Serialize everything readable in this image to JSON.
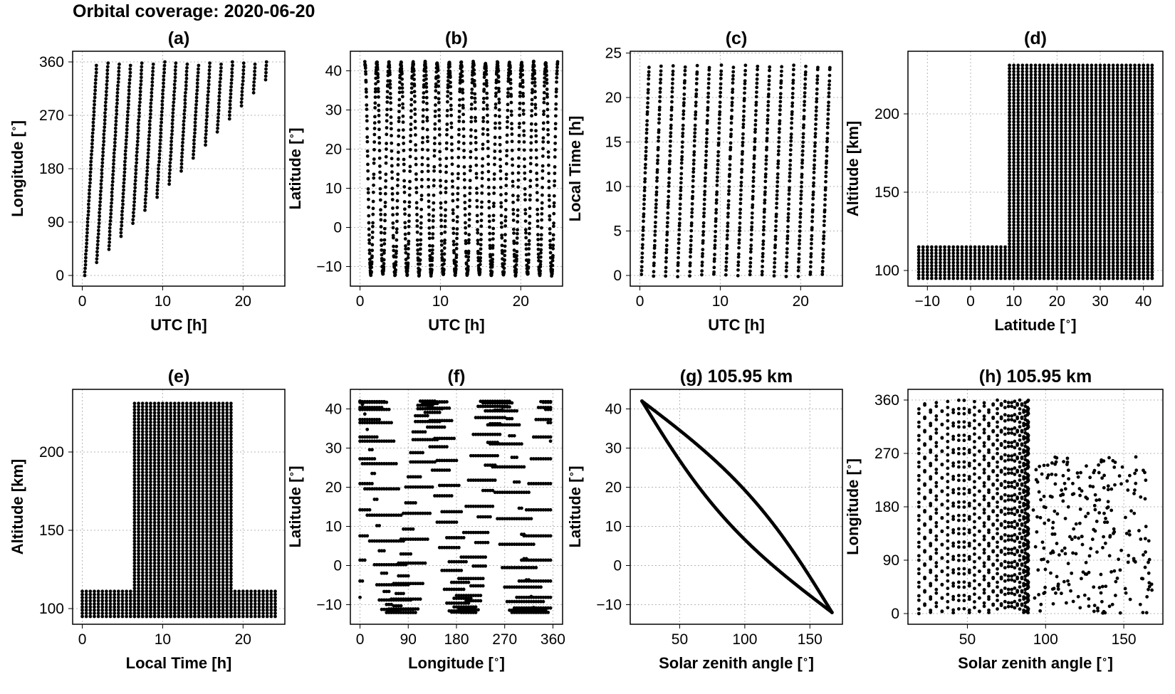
{
  "figure": {
    "title": "Orbital coverage: 2020-06-20"
  },
  "chart_data": [
    {
      "type": "scatter",
      "id": "a",
      "title": "(a)",
      "xlabel": "UTC [h]",
      "ylabel": "Longitude [$^\\circ$]",
      "xlim": [
        -1.2,
        25.2
      ],
      "ylim": [
        -18,
        378
      ],
      "xticks": [
        0,
        10,
        20
      ],
      "yticks": [
        0,
        90,
        180,
        270,
        360
      ],
      "grid": true,
      "marker_color": "#000000",
      "series": [
        {
          "kind": "utc_longitude_stripes",
          "orbit_period_h": 1.5,
          "orbits": 16,
          "drift_deg_per_h": 240
        }
      ]
    },
    {
      "type": "scatter",
      "id": "b",
      "title": "(b)",
      "xlabel": "UTC [h]",
      "ylabel": "Latitude [$^\\circ$]",
      "xlim": [
        -1.2,
        25.2
      ],
      "ylim": [
        -15,
        45
      ],
      "xticks": [
        0,
        10,
        20
      ],
      "yticks": [
        -10,
        0,
        10,
        20,
        30,
        40
      ],
      "grid": true,
      "marker_color": "#000000",
      "series": [
        {
          "kind": "latitude_oscillation",
          "lat_range": [
            -12,
            42
          ],
          "orbit_period_h": 1.5,
          "orbits": 16
        }
      ]
    },
    {
      "type": "scatter",
      "id": "c",
      "title": "(c)",
      "xlabel": "UTC [h]",
      "ylabel": "Local Time [h]",
      "xlim": [
        -1.2,
        25.2
      ],
      "ylim": [
        -1.2,
        25.2
      ],
      "xticks": [
        0,
        10,
        20
      ],
      "yticks": [
        0,
        5,
        10,
        15,
        20,
        25
      ],
      "grid": true,
      "marker_color": "#000000",
      "series": [
        {
          "kind": "utc_localtime_stripes",
          "orbit_period_h": 1.5,
          "orbits": 16
        }
      ]
    },
    {
      "type": "scatter",
      "id": "d",
      "title": "(d)",
      "xlabel": "Latitude [$^\\circ$]",
      "ylabel": "Altitude [km]",
      "xlim": [
        -14.5,
        44.5
      ],
      "ylim": [
        90,
        240
      ],
      "xticks": [
        -10,
        0,
        10,
        20,
        30,
        40
      ],
      "yticks": [
        100,
        150,
        200
      ],
      "grid": true,
      "marker_color": "#000000",
      "series": [
        {
          "name": "low altitude band",
          "x_range": [
            -12,
            42
          ],
          "y_range": [
            95,
            115
          ]
        },
        {
          "name": "high altitude block",
          "x_range": [
            9,
            42
          ],
          "y_range": [
            95,
            233
          ]
        }
      ]
    },
    {
      "type": "scatter",
      "id": "e",
      "title": "(e)",
      "xlabel": "Local Time [h]",
      "ylabel": "Altitude [km]",
      "xlim": [
        -1.2,
        25.2
      ],
      "ylim": [
        90,
        240
      ],
      "xticks": [
        0,
        10,
        20
      ],
      "yticks": [
        100,
        150,
        200
      ],
      "grid": true,
      "marker_color": "#000000",
      "series": [
        {
          "name": "low altitude band",
          "x_range": [
            0,
            24
          ],
          "y_range": [
            95,
            112
          ]
        },
        {
          "name": "high altitude block",
          "x_range": [
            6.5,
            18.5
          ],
          "y_range": [
            95,
            233
          ]
        }
      ]
    },
    {
      "type": "scatter",
      "id": "f",
      "title": "(f)",
      "xlabel": "Longitude [$^\\circ$]",
      "ylabel": "Latitude [$^\\circ$]",
      "xlim": [
        -18,
        378
      ],
      "ylim": [
        -15,
        45
      ],
      "xticks": [
        0,
        90,
        180,
        270,
        360
      ],
      "yticks": [
        -10,
        0,
        10,
        20,
        30,
        40
      ],
      "grid": true,
      "marker_color": "#000000",
      "series": [
        {
          "kind": "ground_track",
          "lat_range": [
            -12,
            42
          ],
          "tracks": 16
        }
      ]
    },
    {
      "type": "scatter",
      "id": "g",
      "title": "(g) 105.95 km",
      "xlabel": "Solar zenith angle [$^\\circ$]",
      "ylabel": "Latitude [$^\\circ$]",
      "xlim": [
        12,
        175
      ],
      "ylim": [
        -15,
        45
      ],
      "xticks": [
        50,
        100,
        150
      ],
      "yticks": [
        -10,
        0,
        10,
        20,
        30,
        40
      ],
      "grid": true,
      "marker_color": "#000000",
      "series": [
        {
          "kind": "sza_latitude_loop",
          "points": [
            [
              21,
              42
            ],
            [
              167,
              -12
            ]
          ],
          "loop_half_width_deg": 10
        }
      ]
    },
    {
      "type": "scatter",
      "id": "h",
      "title": "(h) 105.95 km",
      "xlabel": "Solar zenith angle [$^\\circ$]",
      "ylabel": "Longitude [$^\\circ$]",
      "xlim": [
        12,
        175
      ],
      "ylim": [
        -18,
        378
      ],
      "xticks": [
        50,
        100,
        150
      ],
      "yticks": [
        0,
        90,
        180,
        270,
        360
      ],
      "grid": true,
      "marker_color": "#000000",
      "series": [
        {
          "kind": "sza_longitude_zigzag",
          "sza_range": [
            19,
            168
          ],
          "dense_until_sza": 90
        }
      ]
    }
  ]
}
